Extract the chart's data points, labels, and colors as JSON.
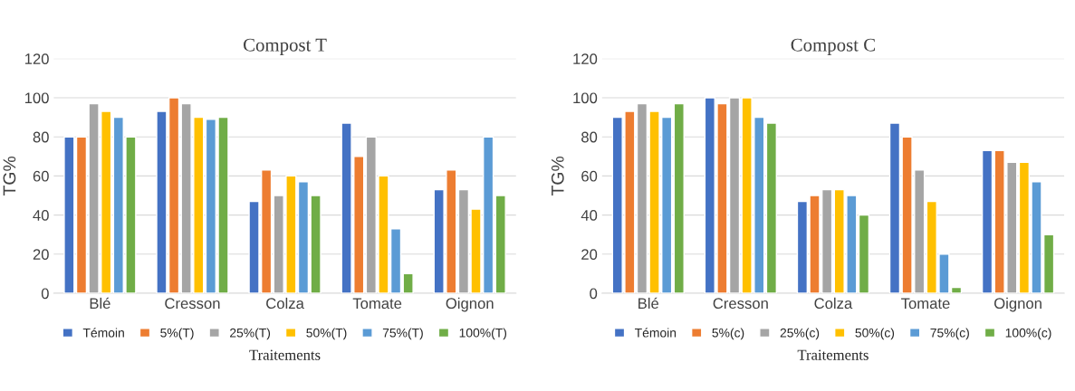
{
  "chart_data": [
    {
      "type": "bar",
      "title": "Compost T",
      "xlabel": "Traitements",
      "ylabel": "TG%",
      "categories": [
        "Blé",
        "Cresson",
        "Colza",
        "Tomate",
        "Oignon"
      ],
      "ylim": [
        0,
        120
      ],
      "yticks": [
        0,
        20,
        40,
        60,
        80,
        100,
        120
      ],
      "grid": "y",
      "legend": "bottom",
      "series": [
        {
          "name": "Témoin",
          "color": "#4472c4",
          "values": [
            80,
            93,
            47,
            87,
            53
          ]
        },
        {
          "name": "5%(T)",
          "color": "#ed7d31",
          "values": [
            80,
            100,
            63,
            70,
            63
          ]
        },
        {
          "name": "25%(T)",
          "color": "#a5a5a5",
          "values": [
            97,
            97,
            50,
            80,
            53
          ]
        },
        {
          "name": "50%(T)",
          "color": "#ffc000",
          "values": [
            93,
            90,
            60,
            60,
            43
          ]
        },
        {
          "name": "75%(T)",
          "color": "#5b9bd5",
          "values": [
            90,
            89,
            57,
            33,
            80
          ]
        },
        {
          "name": "100%(T)",
          "color": "#70ad47",
          "values": [
            80,
            90,
            50,
            10,
            50
          ]
        }
      ]
    },
    {
      "type": "bar",
      "title": "Compost C",
      "xlabel": "Traitements",
      "ylabel": "TG%",
      "categories": [
        "Blé",
        "Cresson",
        "Colza",
        "Tomate",
        "Oignon"
      ],
      "ylim": [
        0,
        120
      ],
      "yticks": [
        0,
        20,
        40,
        60,
        80,
        100,
        120
      ],
      "grid": "y",
      "legend": "bottom",
      "series": [
        {
          "name": "Témoin",
          "color": "#4472c4",
          "values": [
            90,
            100,
            47,
            87,
            73
          ]
        },
        {
          "name": "5%(c)",
          "color": "#ed7d31",
          "values": [
            93,
            97,
            50,
            80,
            73
          ]
        },
        {
          "name": "25%(c)",
          "color": "#a5a5a5",
          "values": [
            97,
            100,
            53,
            63,
            67
          ]
        },
        {
          "name": "50%(c)",
          "color": "#ffc000",
          "values": [
            93,
            100,
            53,
            47,
            67
          ]
        },
        {
          "name": "75%(c)",
          "color": "#5b9bd5",
          "values": [
            90,
            90,
            50,
            20,
            57
          ]
        },
        {
          "name": "100%(c)",
          "color": "#70ad47",
          "values": [
            97,
            87,
            40,
            3,
            30
          ]
        }
      ]
    }
  ]
}
